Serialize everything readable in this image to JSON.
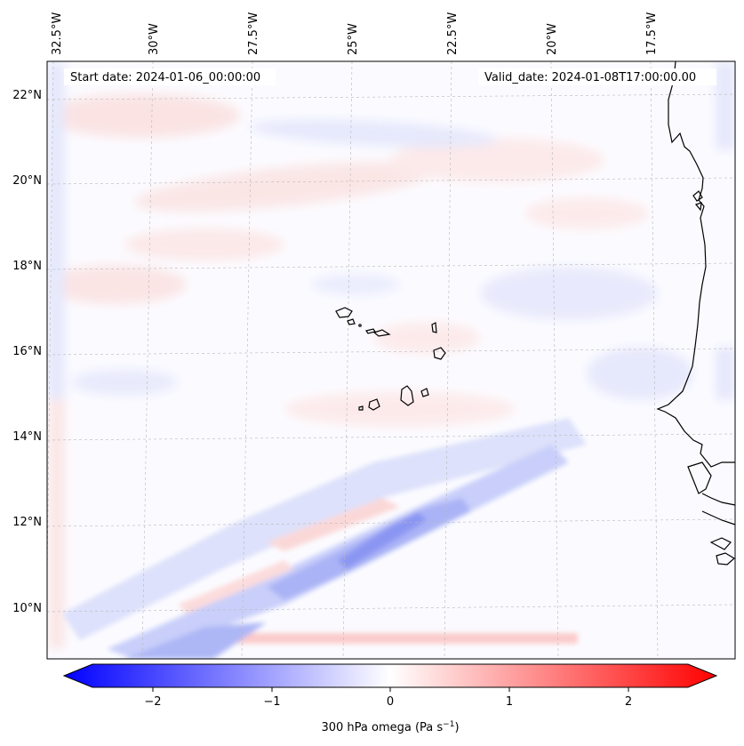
{
  "header": {
    "start_date": "Start date: 2024-01-06_00:00:00",
    "valid_date": "Valid_date: 2024-01-08T17:00:00.00"
  },
  "longitude_labels": [
    "32.5°W",
    "30°W",
    "27.5°W",
    "25°W",
    "22.5°W",
    "20°W",
    "17.5°W"
  ],
  "latitude_labels": [
    "22°N",
    "20°N",
    "18°N",
    "16°N",
    "14°N",
    "12°N",
    "10°N"
  ],
  "colorbar": {
    "label": "300 hPa omega (Pa s",
    "label_exponent": "−1",
    "label_suffix": ")",
    "ticks": [
      "−2",
      "−1",
      "0",
      "1",
      "2"
    ],
    "min": -2.5,
    "max": 2.5,
    "low_color": "#0000ff",
    "mid_color": "#ffffff",
    "high_color": "#ff0000"
  },
  "colors": {
    "coastline": "#000000",
    "gridline": "#b0b0b0",
    "positive_tint": "#fbe3e3",
    "negative_tint": "#e3e6fb"
  }
}
